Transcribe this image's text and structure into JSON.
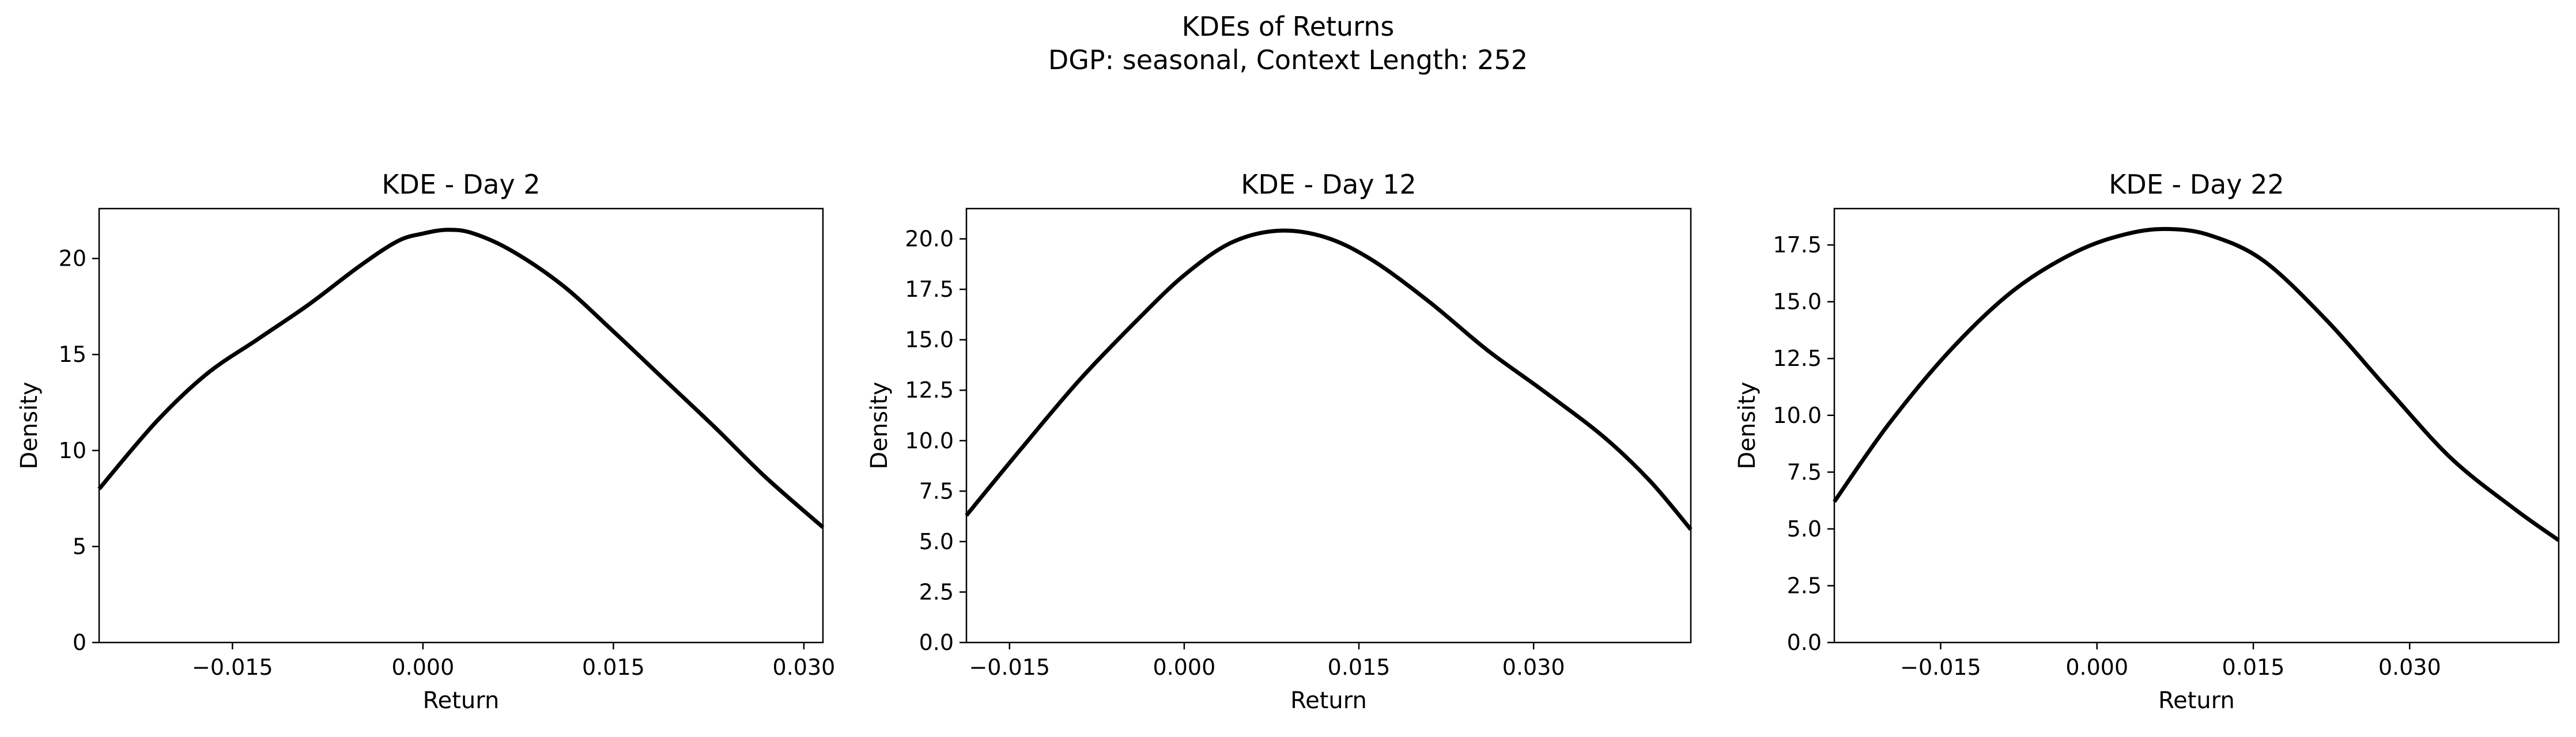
{
  "figure": {
    "title_line1": "KDEs of Returns",
    "title_line2": "DGP: seasonal, Context Length: 252"
  },
  "chart_data": [
    {
      "type": "line",
      "title": "KDE - Day 2",
      "xlabel": "Return",
      "ylabel": "Density",
      "xlim": [
        -0.0255,
        0.0315
      ],
      "ylim": [
        0,
        22.6
      ],
      "xticks": [
        -0.015,
        0.0,
        0.015,
        0.03
      ],
      "xtick_labels": [
        "−0.015",
        "0.000",
        "0.015",
        "0.030"
      ],
      "yticks": [
        0,
        5,
        10,
        15,
        20
      ],
      "ytick_labels": [
        "0",
        "5",
        "10",
        "15",
        "20"
      ],
      "grid": false,
      "color": "#000000",
      "series": [
        {
          "x": [
            -0.0255,
            -0.021,
            -0.017,
            -0.013,
            -0.009,
            -0.005,
            -0.002,
            0.0,
            0.002,
            0.004,
            0.007,
            0.011,
            0.015,
            0.019,
            0.023,
            0.027,
            0.0315
          ],
          "y": [
            8.0,
            11.5,
            14.0,
            15.8,
            17.6,
            19.6,
            20.9,
            21.3,
            21.5,
            21.3,
            20.4,
            18.6,
            16.2,
            13.7,
            11.2,
            8.6,
            6.0
          ]
        }
      ]
    },
    {
      "type": "line",
      "title": "KDE - Day 12",
      "xlabel": "Return",
      "ylabel": "Density",
      "xlim": [
        -0.0187,
        0.0435
      ],
      "ylim": [
        0,
        21.5
      ],
      "xticks": [
        -0.015,
        0.0,
        0.015,
        0.03
      ],
      "xtick_labels": [
        "−0.015",
        "0.000",
        "0.015",
        "0.030"
      ],
      "yticks": [
        0,
        2.5,
        5,
        7.5,
        10,
        12.5,
        15,
        17.5,
        20
      ],
      "ytick_labels": [
        "0.0",
        "2.5",
        "5.0",
        "7.5",
        "10.0",
        "12.5",
        "15.0",
        "17.5",
        "20.0"
      ],
      "grid": false,
      "color": "#000000",
      "series": [
        {
          "x": [
            -0.0187,
            -0.014,
            -0.009,
            -0.004,
            0.0,
            0.004,
            0.008,
            0.012,
            0.016,
            0.021,
            0.026,
            0.031,
            0.036,
            0.04,
            0.0435
          ],
          "y": [
            6.3,
            9.6,
            13.0,
            16.0,
            18.2,
            19.8,
            20.4,
            20.1,
            19.0,
            16.9,
            14.5,
            12.4,
            10.2,
            8.0,
            5.6
          ]
        }
      ]
    },
    {
      "type": "line",
      "title": "KDE - Day 22",
      "xlabel": "Return",
      "ylabel": "Density",
      "xlim": [
        -0.0252,
        0.0443
      ],
      "ylim": [
        0,
        19.1
      ],
      "xticks": [
        -0.015,
        0.0,
        0.015,
        0.03
      ],
      "xtick_labels": [
        "−0.015",
        "0.000",
        "0.015",
        "0.030"
      ],
      "yticks": [
        0,
        2.5,
        5,
        7.5,
        10,
        12.5,
        15,
        17.5
      ],
      "ytick_labels": [
        "0.0",
        "2.5",
        "5.0",
        "7.5",
        "10.0",
        "12.5",
        "15.0",
        "17.5"
      ],
      "grid": false,
      "color": "#000000",
      "series": [
        {
          "x": [
            -0.0252,
            -0.02,
            -0.014,
            -0.008,
            -0.002,
            0.003,
            0.007,
            0.011,
            0.016,
            0.022,
            0.028,
            0.034,
            0.04,
            0.0443
          ],
          "y": [
            6.2,
            9.6,
            12.9,
            15.5,
            17.2,
            18.0,
            18.2,
            17.9,
            16.8,
            14.2,
            11.1,
            8.1,
            5.9,
            4.5
          ]
        }
      ]
    }
  ]
}
